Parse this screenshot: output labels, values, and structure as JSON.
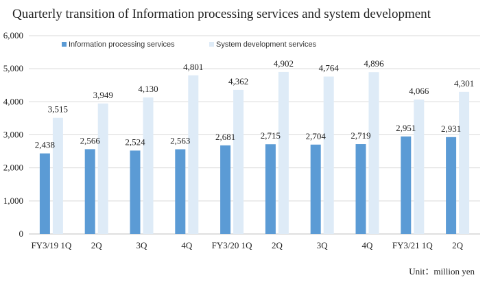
{
  "chart_data": {
    "type": "bar",
    "title": "Quarterly transition of Information processing services and system development",
    "unit_note": "Unit：million yen",
    "categories": [
      "FY3/19 1Q",
      "2Q",
      "3Q",
      "4Q",
      "FY3/20 1Q",
      "2Q",
      "3Q",
      "4Q",
      "FY3/21 1Q",
      "2Q"
    ],
    "series": [
      {
        "name": "Information processing services",
        "color": "#5b9bd5",
        "values": [
          2438,
          2566,
          2524,
          2563,
          2681,
          2715,
          2704,
          2719,
          2951,
          2931
        ],
        "labels": [
          "2,438",
          "2,566",
          "2,524",
          "2,563",
          "2,681",
          "2,715",
          "2,704",
          "2,719",
          "2,951",
          "2,931"
        ]
      },
      {
        "name": "System development services",
        "color": "#deebf7",
        "values": [
          3515,
          3949,
          4130,
          4801,
          4362,
          4902,
          4764,
          4896,
          4066,
          4301
        ],
        "labels": [
          "3,515",
          "3,949",
          "4,130",
          "4,801",
          "4,362",
          "4,902",
          "4,764",
          "4,896",
          "4,066",
          "4,301"
        ]
      }
    ],
    "ylim": [
      0,
      6000
    ],
    "yticks": [
      0,
      1000,
      2000,
      3000,
      4000,
      5000,
      6000
    ],
    "ytick_labels": [
      "0",
      "1,000",
      "2,000",
      "3,000",
      "4,000",
      "5,000",
      "6,000"
    ],
    "grid": true,
    "legend_position": "top-left"
  }
}
